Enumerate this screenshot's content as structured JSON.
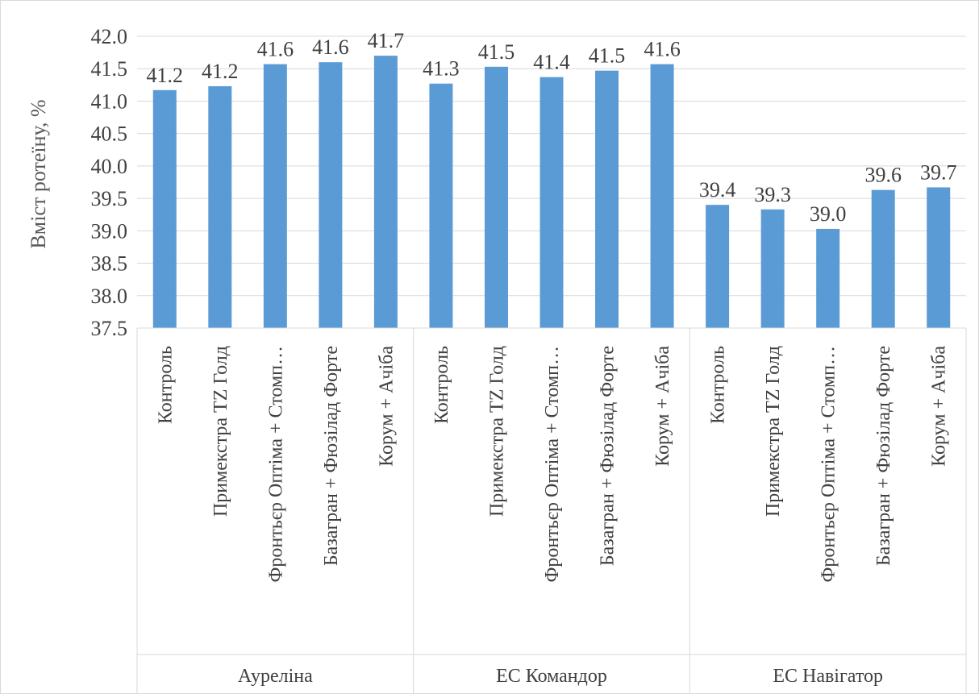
{
  "chart_data": {
    "type": "bar",
    "title": "",
    "ylabel": "Вміст ротеїну, %",
    "xlabel": "",
    "ylim": [
      37.5,
      42.0
    ],
    "yticks": [
      "42.0",
      "41.5",
      "41.0",
      "40.5",
      "40.0",
      "39.5",
      "39.0",
      "38.5",
      "38.0",
      "37.5"
    ],
    "grid": true,
    "legend": "none",
    "bar_color": "#5b9bd5",
    "groups": [
      {
        "name": "Ауреліна",
        "categories": [
          "Контроль",
          "Примекстра TZ Голд",
          "Фронтьєр Оптіма + Стомп…",
          "Базагран + Фюзілад Форте",
          "Корум + Ачіба"
        ],
        "values": [
          41.17,
          41.23,
          41.57,
          41.6,
          41.7
        ],
        "labels": [
          "41.2",
          "41.2",
          "41.6",
          "41.6",
          "41.7"
        ]
      },
      {
        "name": "ЕС Командор",
        "categories": [
          "Контроль",
          "Примекстра TZ Голд",
          "Фронтьєр Оптіма + Стомп…",
          "Базагран + Фюзілад Форте",
          "Корум + Ачіба"
        ],
        "values": [
          41.27,
          41.53,
          41.37,
          41.47,
          41.57
        ],
        "labels": [
          "41.3",
          "41.5",
          "41.4",
          "41.5",
          "41.6"
        ]
      },
      {
        "name": "ЕС Навігатор",
        "categories": [
          "Контроль",
          "Примекстра TZ Голд",
          "Фронтьєр Оптіма + Стомп…",
          "Базагран + Фюзілад Форте",
          "Корум + Ачіба"
        ],
        "values": [
          39.4,
          39.33,
          39.03,
          39.63,
          39.67
        ],
        "labels": [
          "39.4",
          "39.3",
          "39.0",
          "39.6",
          "39.7"
        ]
      }
    ]
  }
}
